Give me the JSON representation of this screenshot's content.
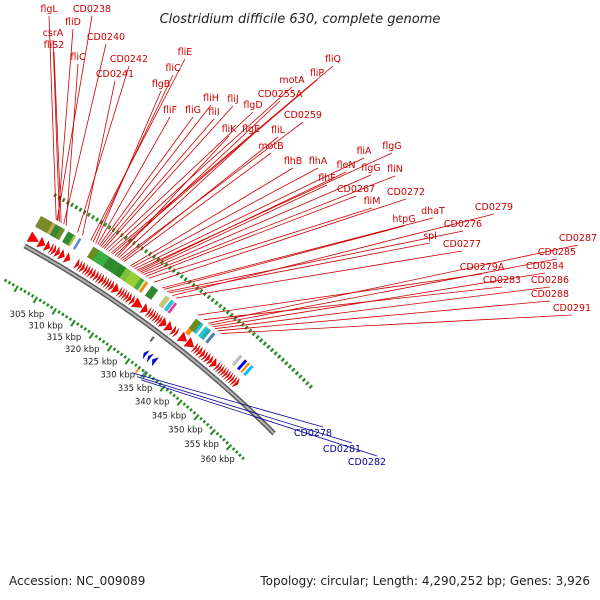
{
  "title": "Clostridium difficile 630, complete genome",
  "footer": {
    "accession": "Accession: NC_009089",
    "summary": "Topology: circular; Length: 4,290,252 bp; Genes: 3,926"
  },
  "colors": {
    "forward_label": "#cc0000",
    "reverse_label": "#000099",
    "backbone": "#808080",
    "tick": "#228b22",
    "forward_gene": "#ff0000",
    "reverse_gene": "#0000ff"
  },
  "axis": {
    "unit": "kbp",
    "ticks": [
      "305 kbp",
      "310 kbp",
      "315 kbp",
      "320 kbp",
      "325 kbp",
      "330 kbp",
      "335 kbp",
      "340 kbp",
      "345 kbp",
      "350 kbp",
      "355 kbp",
      "360 kbp"
    ]
  },
  "forward_genes": [
    {
      "label": "flgL",
      "start_kbp": 300.2
    },
    {
      "label": "CD0238",
      "start_kbp": 300.4
    },
    {
      "label": "fliD",
      "start_kbp": 300.6
    },
    {
      "label": "csrA",
      "start_kbp": 301.0
    },
    {
      "label": "fliS2",
      "start_kbp": 301.4
    },
    {
      "label": "CD0240",
      "start_kbp": 302.0
    },
    {
      "label": "fliC",
      "start_kbp": 302.6
    },
    {
      "label": "CD0242",
      "start_kbp": 305.4
    },
    {
      "label": "CD0241",
      "start_kbp": 306.6
    },
    {
      "label": "fliE",
      "start_kbp": 308.6
    },
    {
      "label": "fliC",
      "start_kbp": 309.2
    },
    {
      "label": "flgB",
      "start_kbp": 309.8
    },
    {
      "label": "fliF",
      "start_kbp": 310.3
    },
    {
      "label": "fliG",
      "start_kbp": 310.7
    },
    {
      "label": "fliH",
      "start_kbp": 311.1
    },
    {
      "label": "fliI",
      "start_kbp": 311.5
    },
    {
      "label": "fliJ",
      "start_kbp": 311.9
    },
    {
      "label": "flgD",
      "start_kbp": 312.4
    },
    {
      "label": "motA",
      "start_kbp": 313.0
    },
    {
      "label": "fliQ",
      "start_kbp": 313.6
    },
    {
      "label": "fliP",
      "start_kbp": 314.0
    },
    {
      "label": "CD0255A",
      "start_kbp": 314.6
    },
    {
      "label": "fliK",
      "start_kbp": 315.1
    },
    {
      "label": "flgE",
      "start_kbp": 315.5
    },
    {
      "label": "CD0259",
      "start_kbp": 316.0
    },
    {
      "label": "fliL",
      "start_kbp": 316.5
    },
    {
      "label": "motB",
      "start_kbp": 316.9
    },
    {
      "label": "flhB",
      "start_kbp": 318.5
    },
    {
      "label": "flhA",
      "start_kbp": 319.0
    },
    {
      "label": "fliA",
      "start_kbp": 319.6
    },
    {
      "label": "flgG",
      "start_kbp": 320.1
    },
    {
      "label": "fleN",
      "start_kbp": 320.5
    },
    {
      "label": "flhF",
      "start_kbp": 320.9
    },
    {
      "label": "flgG",
      "start_kbp": 321.3
    },
    {
      "label": "fliN",
      "start_kbp": 321.8
    },
    {
      "label": "CD0267",
      "start_kbp": 322.4
    },
    {
      "label": "fliM",
      "start_kbp": 323.1
    },
    {
      "label": "CD0272",
      "start_kbp": 324.5
    },
    {
      "label": "dhaT",
      "start_kbp": 326.6
    },
    {
      "label": "htpG",
      "start_kbp": 327.1
    },
    {
      "label": "CD0276",
      "start_kbp": 327.9
    },
    {
      "label": "spl",
      "start_kbp": 328.4
    },
    {
      "label": "CD0279",
      "start_kbp": 329.3
    },
    {
      "label": "CD0277",
      "start_kbp": 330.2
    },
    {
      "label": "CD0279A",
      "start_kbp": 336.0
    },
    {
      "label": "CD0283",
      "start_kbp": 337.6
    },
    {
      "label": "CD0287",
      "start_kbp": 338.8
    },
    {
      "label": "CD0285",
      "start_kbp": 339.4
    },
    {
      "label": "CD0284",
      "start_kbp": 340.0
    },
    {
      "label": "CD0286",
      "start_kbp": 340.6
    },
    {
      "label": "CD0288",
      "start_kbp": 341.3
    },
    {
      "label": "CD0291",
      "start_kbp": 342.2
    }
  ],
  "reverse_genes": [
    {
      "label": "CD0278",
      "start_kbp": 332.4
    },
    {
      "label": "CD0281",
      "start_kbp": 333.8
    },
    {
      "label": "CD0282",
      "start_kbp": 335.0
    }
  ]
}
